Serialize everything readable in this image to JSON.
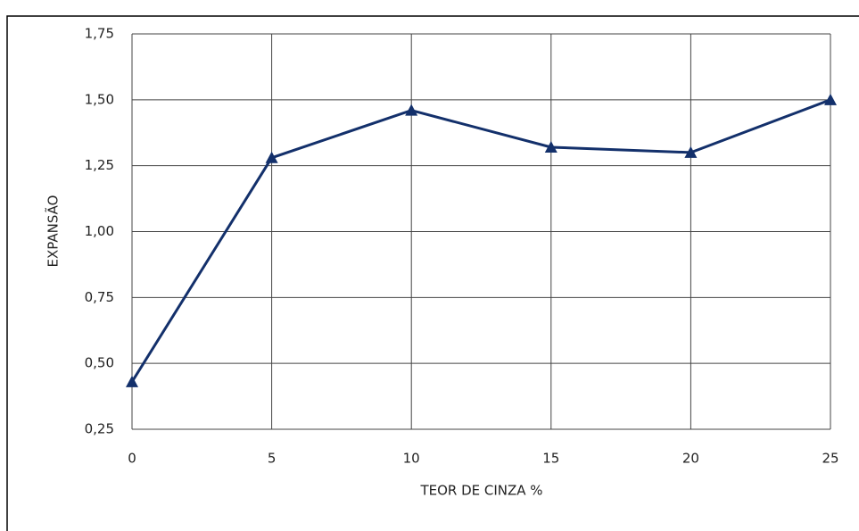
{
  "chart_data": {
    "type": "line",
    "x_label": "TEOR DE CINZA %",
    "y_label": "EXPANSÃO",
    "x": [
      0,
      5,
      10,
      15,
      20,
      25
    ],
    "series": [
      {
        "name": "Expansão",
        "color": "#13306b",
        "values": [
          0.43,
          1.28,
          1.46,
          1.32,
          1.3,
          1.5
        ]
      }
    ],
    "xlim": [
      0,
      25
    ],
    "xticks": [
      0,
      5,
      10,
      15,
      20,
      25
    ],
    "ylim": [
      0.25,
      1.75
    ],
    "yticks": [
      {
        "value": 0.25,
        "label": "0,25"
      },
      {
        "value": 0.5,
        "label": "0,50"
      },
      {
        "value": 0.75,
        "label": "0,75"
      },
      {
        "value": 1.0,
        "label": "1,00"
      },
      {
        "value": 1.25,
        "label": "1,25"
      },
      {
        "value": 1.5,
        "label": "1,50"
      },
      {
        "value": 1.75,
        "label": "1,75"
      }
    ],
    "grid": true
  }
}
